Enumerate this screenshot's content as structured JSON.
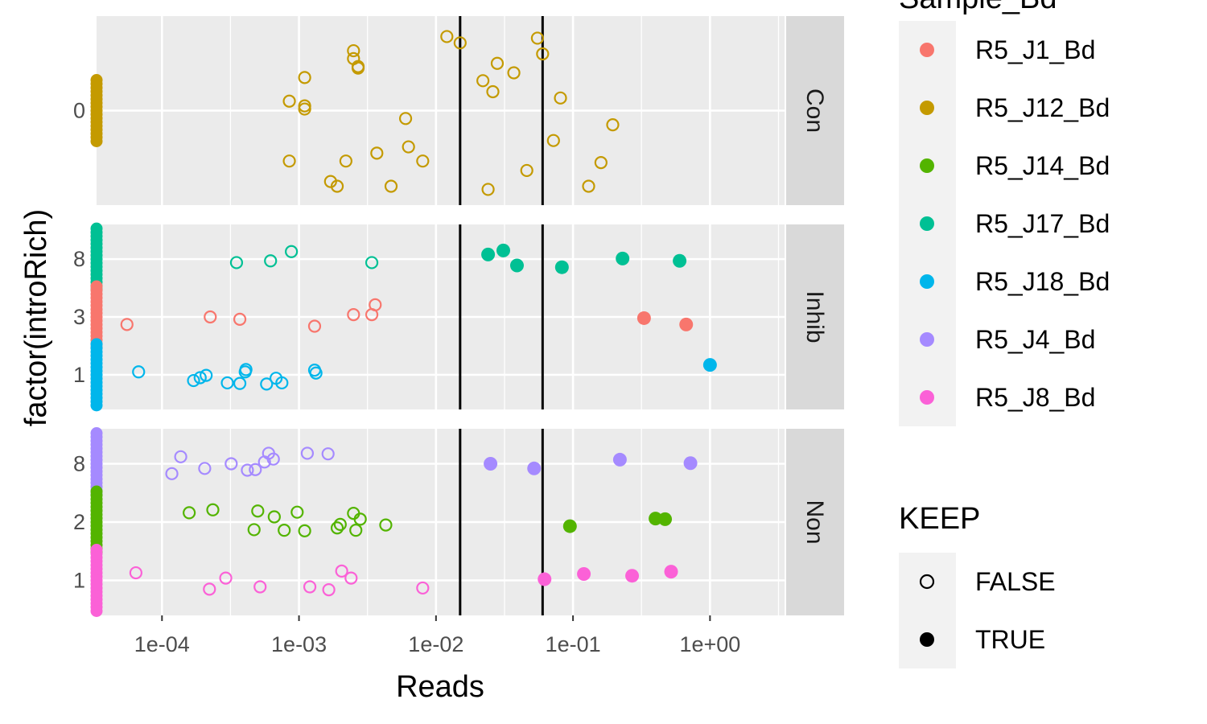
{
  "chart_data": {
    "type": "scatter",
    "title": "",
    "xlabel": "Reads",
    "ylabel": "factor(introRich)",
    "x_scale": "log10",
    "xlim": [
      3.33e-05,
      3.5
    ],
    "x_ticks": [
      "1e-04",
      "1e-03",
      "1e-02",
      "1e-01",
      "1e+00"
    ],
    "x_tick_values": [
      0.0001,
      0.001,
      0.01,
      0.1,
      1
    ],
    "vlines": [
      0.015,
      0.06
    ],
    "colors": {
      "panel_bg": "#EBEBEB",
      "grid": "#FFFFFF",
      "strip_bg": "#D9D9D9",
      "legend_key_bg": "#F2F2F2",
      "text": "#000000",
      "tick_text": "#4D4D4D"
    },
    "legend_color": {
      "title": "Sample_Bd",
      "entries": [
        {
          "label": "R5_J1_Bd",
          "color": "#F8766D"
        },
        {
          "label": "R5_J12_Bd",
          "color": "#C49A00"
        },
        {
          "label": "R5_J14_Bd",
          "color": "#53B400"
        },
        {
          "label": "R5_J17_Bd",
          "color": "#00C094"
        },
        {
          "label": "R5_J18_Bd",
          "color": "#00B6EB"
        },
        {
          "label": "R5_J4_Bd",
          "color": "#A58AFF"
        },
        {
          "label": "R5_J8_Bd",
          "color": "#FB61D7"
        }
      ]
    },
    "legend_shape": {
      "title": "KEEP",
      "entries": [
        {
          "label": "FALSE",
          "filled": false
        },
        {
          "label": "TRUE",
          "filled": true
        }
      ]
    },
    "facets": [
      {
        "strip": "Con",
        "levels": [
          "0"
        ],
        "series": [
          {
            "sample": "R5_J12_Bd",
            "level": "0",
            "keep_false": [
              [
                0.00085,
                0.06
              ],
              [
                0.00085,
                -0.32
              ],
              [
                0.0011,
                0.21
              ],
              [
                0.0011,
                0.01
              ],
              [
                0.0011,
                0.03
              ],
              [
                0.0017,
                -0.45
              ],
              [
                0.0019,
                -0.48
              ],
              [
                0.0022,
                -0.32
              ],
              [
                0.0025,
                0.38
              ],
              [
                0.0025,
                0.33
              ],
              [
                0.0027,
                0.28
              ],
              [
                0.0027,
                0.27
              ],
              [
                0.0037,
                -0.27
              ],
              [
                0.0047,
                -0.48
              ],
              [
                0.006,
                -0.05
              ],
              [
                0.0063,
                -0.23
              ],
              [
                0.008,
                -0.32
              ],
              [
                0.012,
                0.47
              ],
              [
                0.015,
                0.43
              ],
              [
                0.022,
                0.19
              ],
              [
                0.024,
                -0.5
              ],
              [
                0.026,
                0.12
              ],
              [
                0.028,
                0.3
              ],
              [
                0.037,
                0.24
              ],
              [
                0.046,
                -0.38
              ],
              [
                0.055,
                0.46
              ],
              [
                0.06,
                0.36
              ],
              [
                0.072,
                -0.19
              ],
              [
                0.081,
                0.08
              ],
              [
                0.13,
                -0.48
              ],
              [
                0.16,
                -0.33
              ],
              [
                0.195,
                -0.09
              ]
            ],
            "keep_true": []
          }
        ]
      },
      {
        "strip": "Inhib",
        "levels": [
          "1",
          "3",
          "8"
        ],
        "series": [
          {
            "sample": "R5_J17_Bd",
            "level": "8",
            "keep_false": [
              [
                0.00035,
                -0.06
              ],
              [
                0.00062,
                -0.03
              ],
              [
                0.00088,
                0.13
              ],
              [
                0.0034,
                -0.06
              ]
            ],
            "keep_true": [
              [
                0.024,
                0.08
              ],
              [
                0.031,
                0.15
              ],
              [
                0.039,
                -0.11
              ],
              [
                0.083,
                -0.14
              ],
              [
                0.23,
                0.01
              ],
              [
                0.6,
                -0.03
              ]
            ]
          },
          {
            "sample": "R5_J1_Bd",
            "level": "3",
            "keep_false": [
              [
                5.55e-05,
                -0.13
              ],
              [
                0.000225,
                0.0
              ],
              [
                0.00037,
                -0.04
              ],
              [
                0.0013,
                -0.16
              ],
              [
                0.0025,
                0.04
              ],
              [
                0.0034,
                0.04
              ],
              [
                0.0036,
                0.21
              ]
            ],
            "keep_true": [
              [
                0.33,
                -0.02
              ],
              [
                0.67,
                -0.13
              ]
            ]
          },
          {
            "sample": "R5_J18_Bd",
            "level": "1",
            "keep_false": [
              [
                6.75e-05,
                0.05
              ],
              [
                0.00017,
                -0.1
              ],
              [
                0.00019,
                -0.05
              ],
              [
                0.00021,
                -0.01
              ],
              [
                0.0003,
                -0.14
              ],
              [
                0.00037,
                -0.15
              ],
              [
                0.000405,
                0.05
              ],
              [
                0.00041,
                0.09
              ],
              [
                0.00058,
                -0.16
              ],
              [
                0.00068,
                -0.06
              ],
              [
                0.00075,
                -0.14
              ],
              [
                0.0013,
                0.08
              ],
              [
                0.00133,
                0.03
              ]
            ],
            "keep_true": [
              [
                1.0,
                0.17
              ]
            ]
          }
        ]
      },
      {
        "strip": "Non",
        "levels": [
          "1",
          "2",
          "8"
        ],
        "series": [
          {
            "sample": "R5_J4_Bd",
            "level": "8",
            "keep_false": [
              [
                0.000118,
                -0.17
              ],
              [
                0.000137,
                0.12
              ],
              [
                0.000205,
                -0.08
              ],
              [
                0.00032,
                0.0
              ],
              [
                0.00042,
                -0.11
              ],
              [
                0.00048,
                -0.1
              ],
              [
                0.00056,
                0.03
              ],
              [
                0.0006,
                0.18
              ],
              [
                0.00065,
                0.08
              ],
              [
                0.00115,
                0.18
              ],
              [
                0.00163,
                0.17
              ]
            ],
            "keep_true": [
              [
                0.025,
                0.0
              ],
              [
                0.052,
                -0.08
              ],
              [
                0.22,
                0.07
              ],
              [
                0.72,
                0.01
              ]
            ]
          },
          {
            "sample": "R5_J14_Bd",
            "level": "2",
            "keep_false": [
              [
                0.000158,
                0.16
              ],
              [
                0.000235,
                0.21
              ],
              [
                0.00047,
                -0.13
              ],
              [
                0.0005,
                0.19
              ],
              [
                0.00066,
                0.09
              ],
              [
                0.00078,
                -0.14
              ],
              [
                0.00097,
                0.17
              ],
              [
                0.0011,
                -0.15
              ],
              [
                0.0019,
                -0.1
              ],
              [
                0.002,
                -0.04
              ],
              [
                0.0025,
                0.15
              ],
              [
                0.0026,
                -0.14
              ],
              [
                0.0028,
                0.05
              ],
              [
                0.0043,
                -0.05
              ]
            ],
            "keep_true": [
              [
                0.095,
                -0.07
              ],
              [
                0.4,
                0.06
              ],
              [
                0.47,
                0.05
              ]
            ]
          },
          {
            "sample": "R5_J8_Bd",
            "level": "1",
            "keep_false": [
              [
                6.45e-05,
                0.13
              ],
              [
                0.000222,
                -0.15
              ],
              [
                0.000292,
                0.04
              ],
              [
                0.00052,
                -0.11
              ],
              [
                0.0012,
                -0.11
              ],
              [
                0.00165,
                -0.16
              ],
              [
                0.00205,
                0.16
              ],
              [
                0.0024,
                0.04
              ],
              [
                0.008,
                -0.13
              ]
            ],
            "keep_true": [
              [
                0.062,
                0.02
              ],
              [
                0.12,
                0.11
              ],
              [
                0.27,
                0.08
              ],
              [
                0.52,
                0.15
              ]
            ]
          }
        ]
      }
    ]
  }
}
